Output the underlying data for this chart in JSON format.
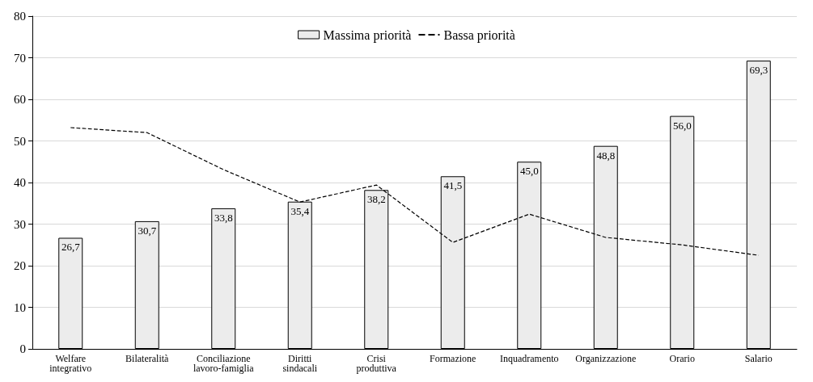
{
  "chart_data": {
    "type": "bar",
    "categories": [
      "Welfare\nintegrativo",
      "Bilateralità",
      "Conciliazione\nlavoro-famiglia",
      "Diritti\nsindacali",
      "Crisi\nproduttiva",
      "Formazione",
      "Inquadramento",
      "Organizzazione",
      "Orario",
      "Salario"
    ],
    "series": [
      {
        "name": "Massima priorità",
        "color": "#ececec",
        "values": [
          26.7,
          30.7,
          33.8,
          35.4,
          38.2,
          41.5,
          45.0,
          48.8,
          56.0,
          69.3
        ],
        "value_labels": [
          "26,7",
          "30,7",
          "33,8",
          "35,4",
          "38,2",
          "41,5",
          "45,0",
          "48,8",
          "56,0",
          "69,3"
        ]
      },
      {
        "name": "Bassa priorità",
        "type": "line",
        "color": "#000000",
        "line_style": "dashed",
        "marker": "none",
        "values": [
          53.2,
          52.0,
          43.1,
          35.3,
          39.4,
          25.6,
          32.4,
          26.8,
          25.0,
          22.5
        ]
      }
    ],
    "ylim": [
      0,
      80
    ],
    "yticks": [
      0,
      10,
      20,
      30,
      40,
      50,
      60,
      70,
      80
    ],
    "grid": "y",
    "legend": "top"
  }
}
